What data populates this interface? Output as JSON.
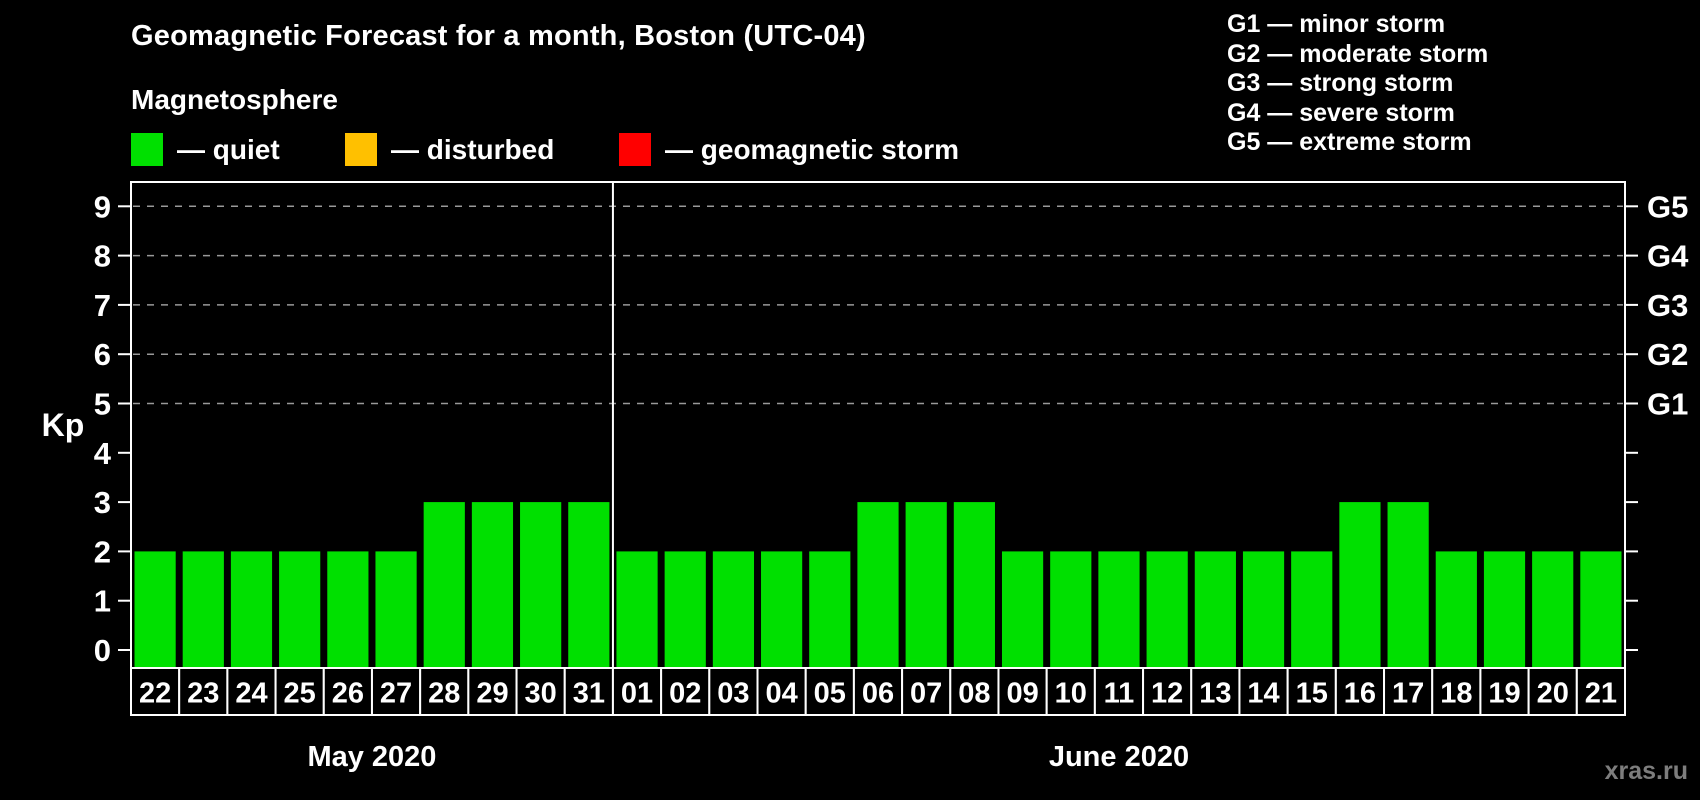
{
  "title": "Geomagnetic Forecast for a month, Boston (UTC-04)",
  "subtitle": "Magnetosphere",
  "legend": {
    "items": [
      {
        "key": "quiet",
        "label": "— quiet",
        "color": "#00e000"
      },
      {
        "key": "disturbed",
        "label": "— disturbed",
        "color": "#ffc000"
      },
      {
        "key": "storm",
        "label": "— geomagnetic storm",
        "color": "#ff0000"
      }
    ]
  },
  "storm_scale_legend": {
    "lines": [
      "G1 — minor storm",
      "G2 — moderate storm",
      "G3 — strong storm",
      "G4 — severe storm",
      "G5 — extreme storm"
    ]
  },
  "watermark": "xras.ru",
  "chart_data": {
    "type": "bar",
    "title": "Geomagnetic Forecast for a month, Boston (UTC-04)",
    "ylabel": "Kp",
    "ylim": [
      0,
      9.45
    ],
    "yticks": [
      0,
      1,
      2,
      3,
      4,
      5,
      6,
      7,
      8,
      9
    ],
    "gridlines_at_kp": [
      5,
      6,
      7,
      8,
      9
    ],
    "grid": "dashed",
    "right_axis": [
      {
        "kp": 5,
        "label": "G1"
      },
      {
        "kp": 6,
        "label": "G2"
      },
      {
        "kp": 7,
        "label": "G3"
      },
      {
        "kp": 8,
        "label": "G4"
      },
      {
        "kp": 9,
        "label": "G5"
      }
    ],
    "colors": {
      "quiet": "#00e000",
      "disturbed": "#ffc000",
      "storm": "#ff0000"
    },
    "color_thresholds": {
      "quiet_max_kp": 3,
      "disturbed_max_kp": 4
    },
    "months": [
      {
        "label": "May 2020",
        "days": [
          "22",
          "23",
          "24",
          "25",
          "26",
          "27",
          "28",
          "29",
          "30",
          "31"
        ],
        "kp_values": [
          2,
          2,
          2,
          2,
          2,
          2,
          3,
          3,
          3,
          3
        ]
      },
      {
        "label": "June 2020",
        "days": [
          "01",
          "02",
          "03",
          "04",
          "05",
          "06",
          "07",
          "08",
          "09",
          "10",
          "11",
          "12",
          "13",
          "14",
          "15",
          "16",
          "17",
          "18",
          "19",
          "20",
          "21"
        ],
        "kp_values": [
          2,
          2,
          2,
          2,
          2,
          3,
          3,
          3,
          2,
          2,
          2,
          2,
          2,
          2,
          2,
          3,
          3,
          2,
          2,
          2,
          2
        ]
      }
    ]
  }
}
